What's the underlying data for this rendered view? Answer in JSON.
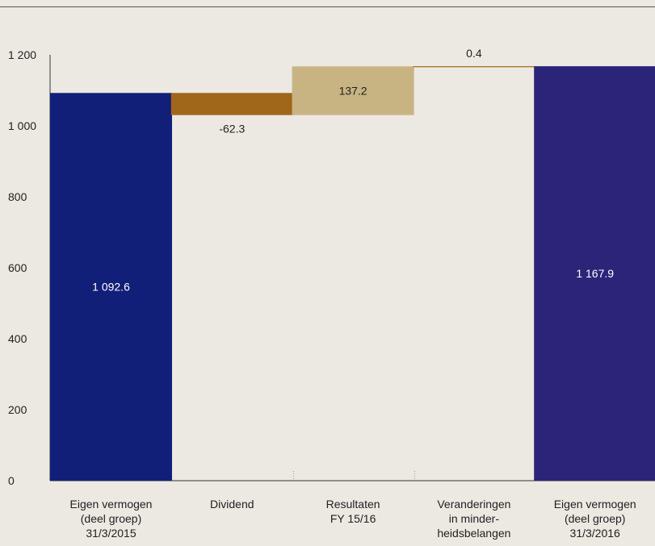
{
  "chart_data": {
    "type": "waterfall",
    "ylim": [
      0,
      1200
    ],
    "yticks": [
      "0",
      "200",
      "400",
      "600",
      "800",
      "1 000",
      "1 200"
    ],
    "ytick_values": [
      0,
      200,
      400,
      600,
      800,
      1000,
      1200
    ],
    "steps": [
      {
        "lines": [
          "Eigen vermogen",
          "(deel groep)",
          "31/3/2015"
        ],
        "kind": "total",
        "base": 0,
        "top": 1092.6,
        "label": "1 092.6",
        "color": "#121f78",
        "label_color": "#ffffff"
      },
      {
        "lines": [
          "Dividend"
        ],
        "kind": "delta",
        "base": 1030.3,
        "top": 1092.6,
        "label": "-62.3",
        "color": "#a0661a",
        "label_color": "#222222"
      },
      {
        "lines": [
          "Resultaten",
          "FY 15/16"
        ],
        "kind": "delta",
        "base": 1030.3,
        "top": 1167.5,
        "label": "137.2",
        "color": "#c8b482",
        "label_color": "#222222"
      },
      {
        "lines": [
          "Veranderingen",
          "in minder-",
          "heidsbelangen"
        ],
        "kind": "delta",
        "base": 1167.5,
        "top": 1167.9,
        "label": "0.4",
        "color": "#a0661a",
        "label_color": "#222222"
      },
      {
        "lines": [
          "Eigen vermogen",
          "(deel groep)",
          "31/3/2016"
        ],
        "kind": "total",
        "base": 0,
        "top": 1167.9,
        "label": "1 167.9",
        "color": "#2b2478",
        "label_color": "#ffffff"
      }
    ]
  }
}
